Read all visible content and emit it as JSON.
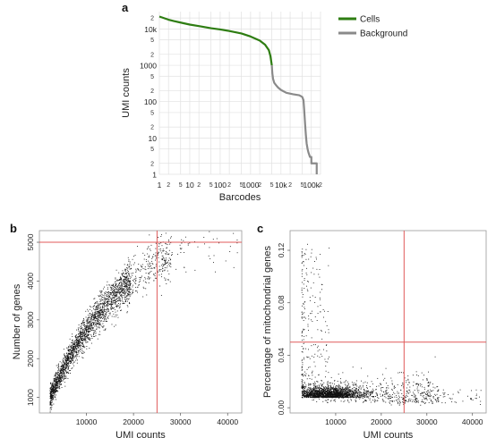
{
  "panels": {
    "a": "a",
    "b": "b",
    "c": "c"
  },
  "chart_data": [
    {
      "id": "a",
      "type": "line",
      "xlabel": "Barcodes",
      "ylabel": "UMI counts",
      "x_scale": "log",
      "y_scale": "log",
      "xlim": [
        1,
        200000
      ],
      "ylim": [
        1,
        30000
      ],
      "grid": true,
      "legend_position": "top-right",
      "x_major_ticks": [
        {
          "v": 1,
          "label": "1"
        },
        {
          "v": 10,
          "label": "10"
        },
        {
          "v": 100,
          "label": "100"
        },
        {
          "v": 1000,
          "label": "1000"
        },
        {
          "v": 10000,
          "label": "10k"
        },
        {
          "v": 100000,
          "label": "100k"
        }
      ],
      "x_minor_ticks": [
        {
          "v": 2,
          "label": "2"
        },
        {
          "v": 5,
          "label": "5"
        },
        {
          "v": 20,
          "label": "2"
        },
        {
          "v": 50,
          "label": "5"
        },
        {
          "v": 200,
          "label": "2"
        },
        {
          "v": 500,
          "label": "5"
        },
        {
          "v": 2000,
          "label": "2"
        },
        {
          "v": 5000,
          "label": "5"
        },
        {
          "v": 20000,
          "label": "2"
        },
        {
          "v": 50000,
          "label": "5"
        },
        {
          "v": 200000,
          "label": "2"
        }
      ],
      "y_major_ticks": [
        {
          "v": 1,
          "label": "1"
        },
        {
          "v": 10,
          "label": "10"
        },
        {
          "v": 100,
          "label": "100"
        },
        {
          "v": 1000,
          "label": "1000"
        },
        {
          "v": 10000,
          "label": "10k"
        }
      ],
      "y_minor_ticks": [
        {
          "v": 2,
          "label": "2"
        },
        {
          "v": 5,
          "label": "5"
        },
        {
          "v": 20,
          "label": "2"
        },
        {
          "v": 50,
          "label": "5"
        },
        {
          "v": 200,
          "label": "2"
        },
        {
          "v": 500,
          "label": "5"
        },
        {
          "v": 2000,
          "label": "2"
        },
        {
          "v": 5000,
          "label": "5"
        },
        {
          "v": 20000,
          "label": "2"
        }
      ],
      "series": [
        {
          "name": "Cells",
          "color": "#2e7d12",
          "points": [
            [
              1,
              22000
            ],
            [
              2,
              18000
            ],
            [
              3,
              16500
            ],
            [
              5,
              15000
            ],
            [
              10,
              13200
            ],
            [
              20,
              12000
            ],
            [
              50,
              10500
            ],
            [
              100,
              9700
            ],
            [
              200,
              8800
            ],
            [
              500,
              7500
            ],
            [
              1000,
              6200
            ],
            [
              2000,
              4800
            ],
            [
              3000,
              3700
            ],
            [
              4000,
              2600
            ],
            [
              4500,
              1800
            ],
            [
              5000,
              1000
            ]
          ]
        },
        {
          "name": "Background",
          "color": "#8a8a8a",
          "points": [
            [
              5000,
              1000
            ],
            [
              5200,
              600
            ],
            [
              5500,
              420
            ],
            [
              6000,
              330
            ],
            [
              7000,
              280
            ],
            [
              8000,
              245
            ],
            [
              10000,
              210
            ],
            [
              15000,
              175
            ],
            [
              25000,
              160
            ],
            [
              40000,
              150
            ],
            [
              50000,
              135
            ],
            [
              55000,
              110
            ],
            [
              58000,
              60
            ],
            [
              62000,
              25
            ],
            [
              66000,
              12
            ],
            [
              70000,
              7
            ],
            [
              75000,
              5
            ],
            [
              80000,
              4
            ],
            [
              90000,
              3
            ],
            [
              100000,
              3
            ],
            [
              100000,
              2
            ],
            [
              150000,
              2
            ],
            [
              150000,
              1
            ]
          ]
        }
      ]
    },
    {
      "id": "b",
      "type": "scatter",
      "xlabel": "UMI counts",
      "ylabel": "Number of genes",
      "xlim": [
        0,
        43000
      ],
      "ylim": [
        600,
        5300
      ],
      "x_ticks": [
        10000,
        20000,
        30000,
        40000
      ],
      "y_ticks": [
        1000,
        2000,
        3000,
        4000,
        5000
      ],
      "point_color": "#111111",
      "threshold_color": "#e05a5a",
      "thresholds": {
        "x": 25000,
        "y": 5000
      },
      "sample_size": 2600,
      "seed": 7
    },
    {
      "id": "c",
      "type": "scatter",
      "xlabel": "UMI counts",
      "ylabel": "Percentage of mitochondrial genes",
      "xlim": [
        0,
        43000
      ],
      "ylim": [
        -0.004,
        0.135
      ],
      "x_ticks": [
        10000,
        20000,
        30000,
        40000
      ],
      "y_ticks": [
        0.0,
        0.04,
        0.08,
        0.12
      ],
      "y_tick_labels": [
        "0.00",
        "0.04",
        "0.08",
        "0.12"
      ],
      "point_color": "#111111",
      "threshold_color": "#e05a5a",
      "thresholds": {
        "x": 25000,
        "y": 0.05
      },
      "sample_size": 2600,
      "seed": 11
    }
  ]
}
